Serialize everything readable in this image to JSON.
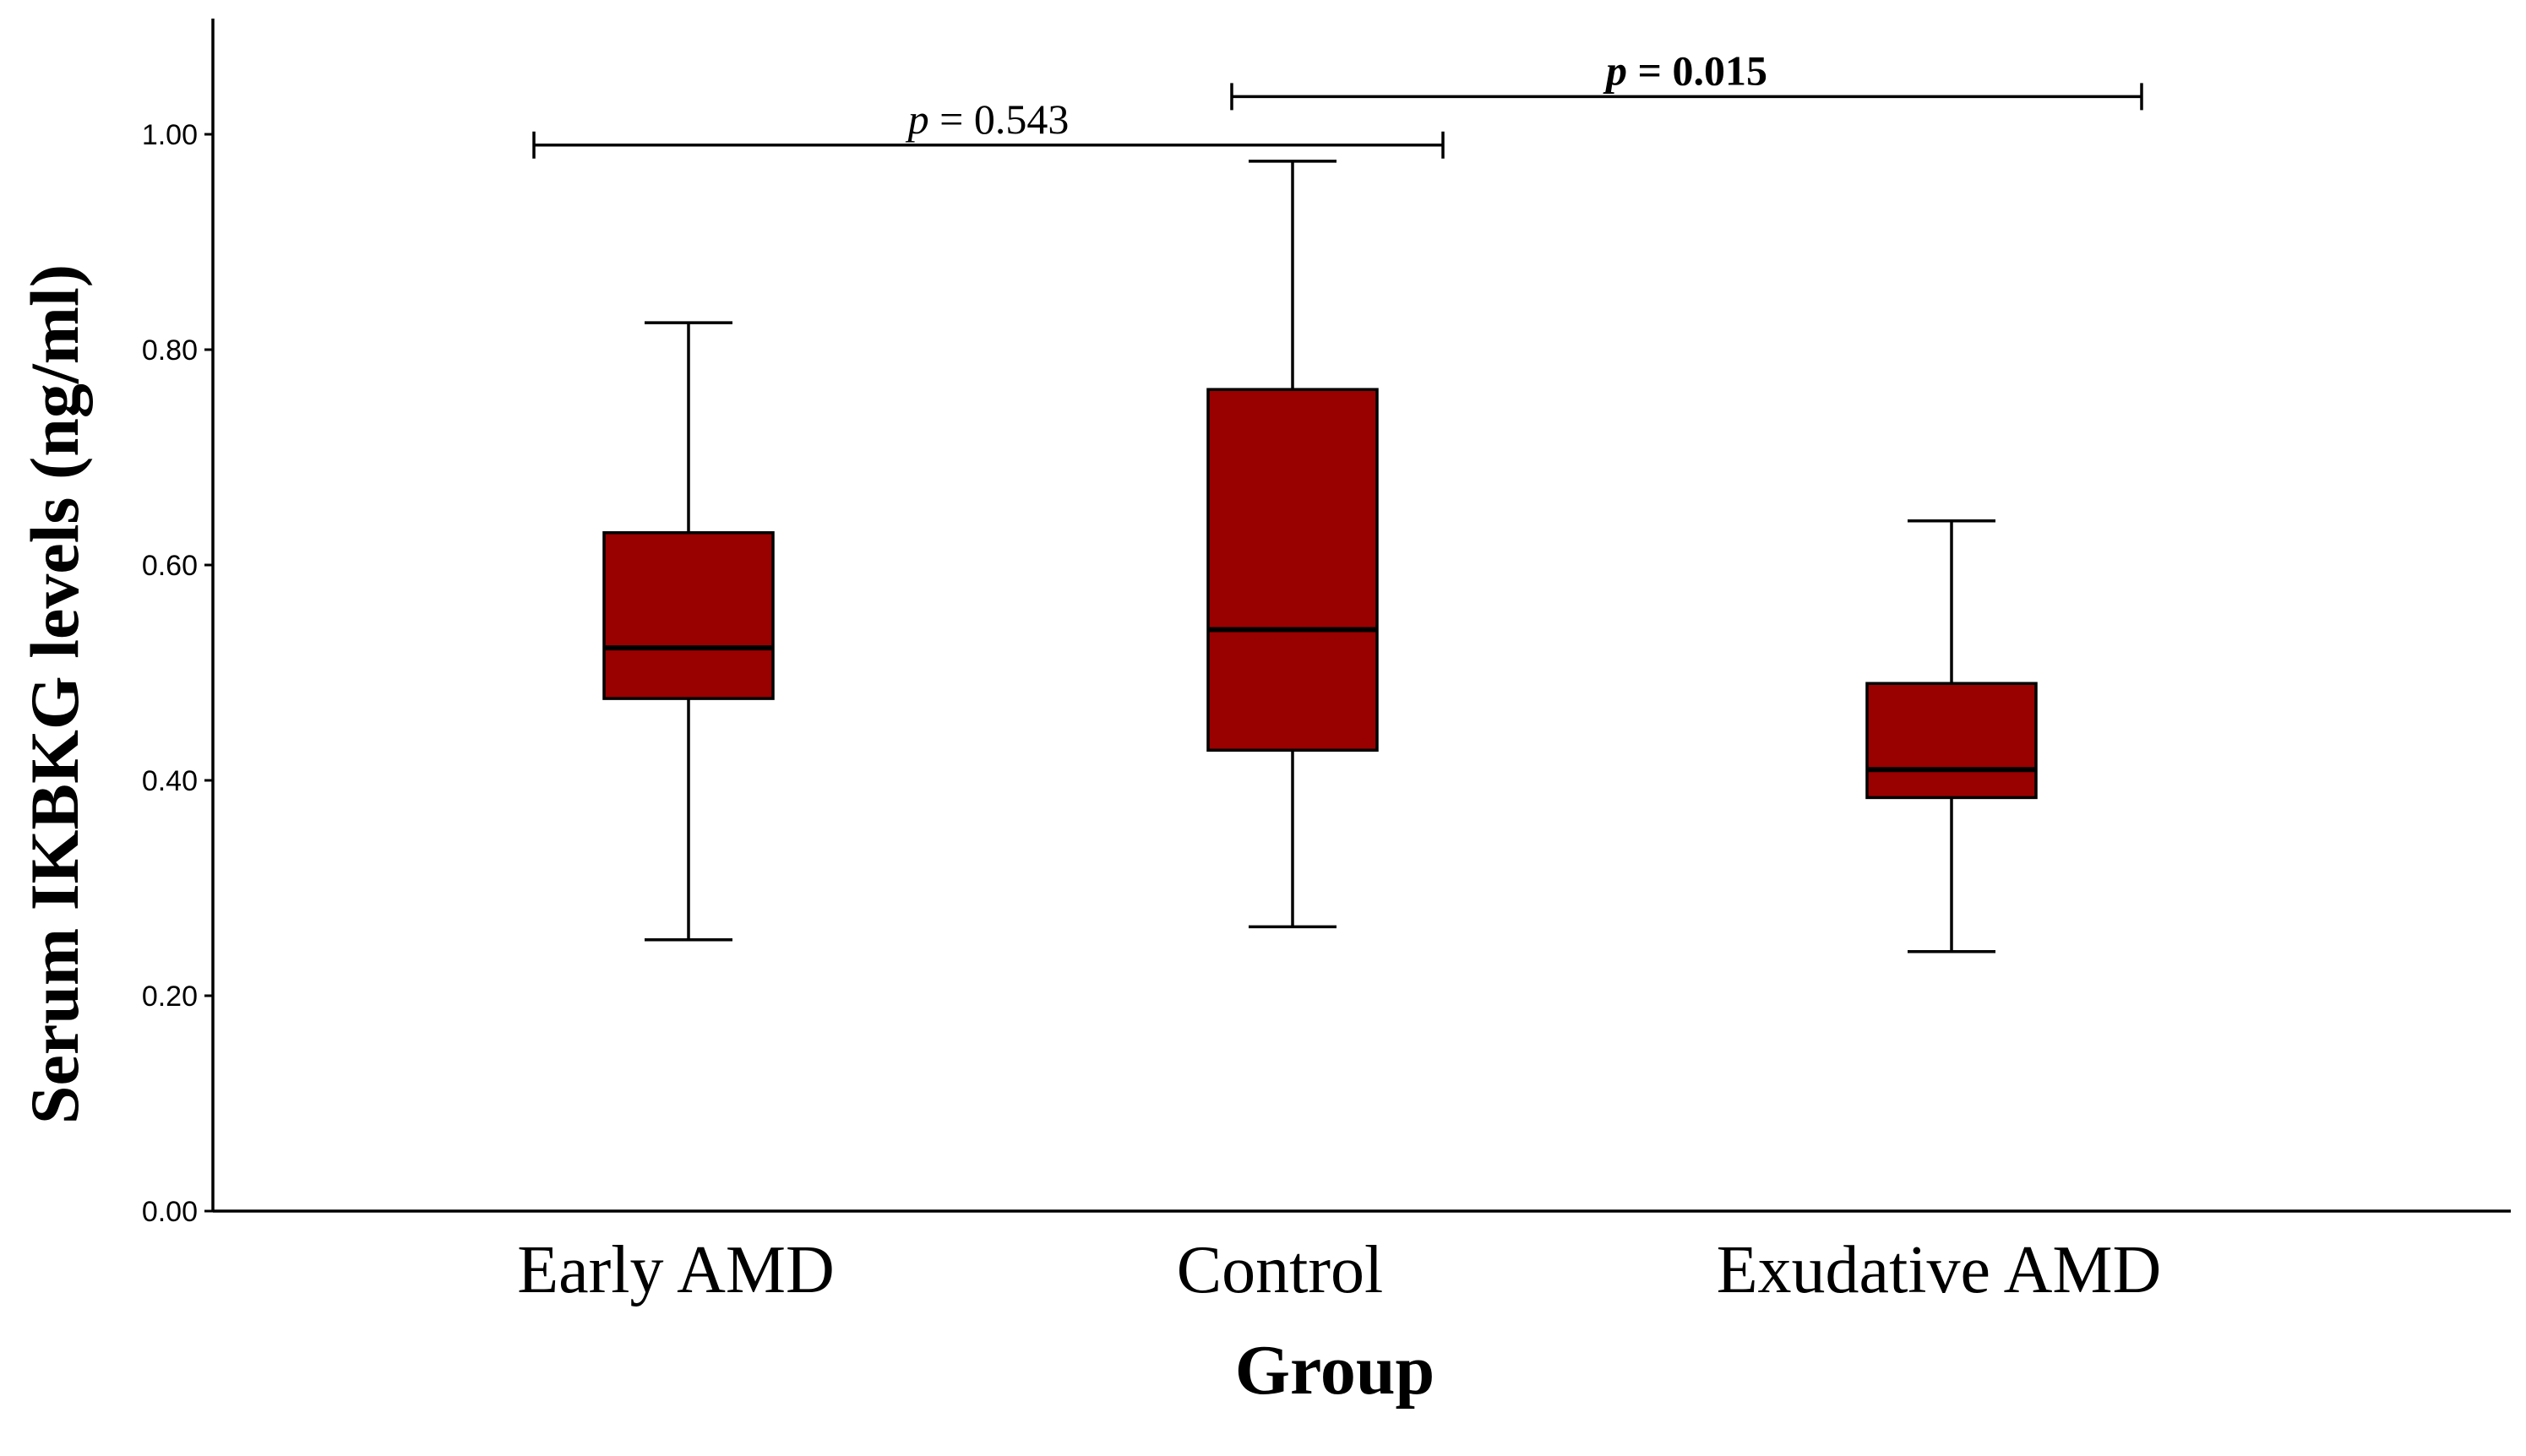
{
  "chart_data": {
    "type": "box",
    "title": "",
    "xlabel": "Group",
    "ylabel": "Serum IKBKG levels (ng/ml)",
    "ylim": [
      0,
      1.1
    ],
    "yticks": [
      0.0,
      0.2,
      0.4,
      0.6,
      0.8,
      1.0
    ],
    "ytick_labels": [
      "0.00",
      "0.20",
      "0.40",
      "0.60",
      "0.80",
      "1.00"
    ],
    "box_color": "#990000",
    "categories": [
      "Early AMD",
      "Control",
      "Exudative AMD"
    ],
    "boxes": [
      {
        "name": "Early AMD",
        "min": 0.252,
        "q1": 0.476,
        "median": 0.523,
        "q3": 0.63,
        "max": 0.825
      },
      {
        "name": "Control",
        "min": 0.264,
        "q1": 0.428,
        "median": 0.54,
        "q3": 0.763,
        "max": 0.975
      },
      {
        "name": "Exudative AMD",
        "min": 0.241,
        "q1": 0.384,
        "median": 0.41,
        "q3": 0.49,
        "max": 0.641
      }
    ],
    "annotations": [
      {
        "from": "Early AMD",
        "to": "Control",
        "y": 0.99,
        "p_label": "p",
        "eq_text": " = 0.543",
        "bold": false
      },
      {
        "from": "Control",
        "to": "Exudative AMD",
        "y": 1.035,
        "p_label": "p",
        "eq_text": " = 0.015",
        "bold": true
      }
    ]
  }
}
